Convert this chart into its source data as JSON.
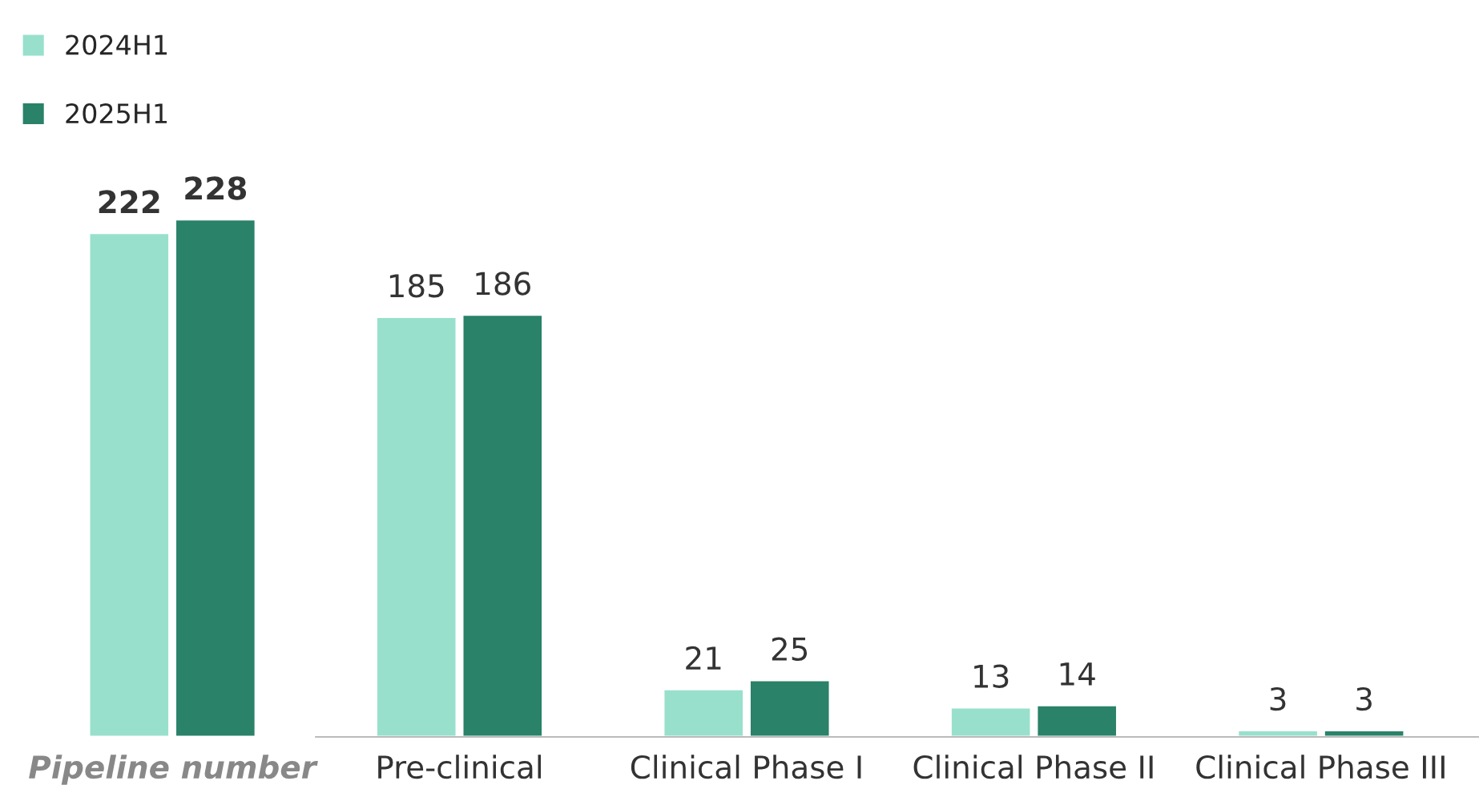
{
  "chart_data": {
    "type": "bar",
    "categories": [
      "Pipeline number",
      "Pre-clinical",
      "Clinical Phase I",
      "Clinical Phase II",
      "Clinical Phase III"
    ],
    "series": [
      {
        "name": "2024H1",
        "color": "#98e0cc",
        "values": [
          222,
          185,
          21,
          13,
          3
        ]
      },
      {
        "name": "2025H1",
        "color": "#2a8268",
        "values": [
          228,
          186,
          25,
          14,
          3
        ]
      }
    ],
    "data_labels": true,
    "legend": "top left",
    "grid": false
  }
}
